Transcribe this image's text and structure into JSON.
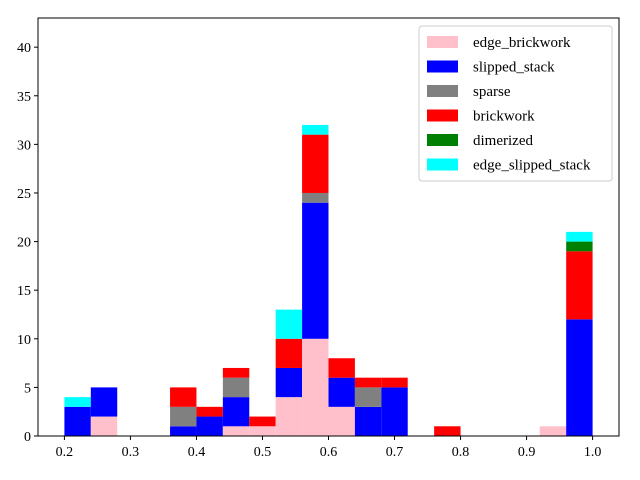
{
  "chart_data": {
    "type": "bar",
    "stacked": true,
    "title": "",
    "xlabel": "",
    "ylabel": "",
    "xlim": [
      0.16,
      1.04
    ],
    "ylim": [
      0,
      43
    ],
    "grid": false,
    "legend_position": "top-right",
    "xticks": [
      0.2,
      0.3,
      0.4,
      0.5,
      0.6,
      0.7,
      0.8,
      0.9,
      1.0
    ],
    "xtick_labels": [
      "0.2",
      "0.3",
      "0.4",
      "0.5",
      "0.6",
      "0.7",
      "0.8",
      "0.9",
      "1.0"
    ],
    "yticks": [
      0,
      5,
      10,
      15,
      20,
      25,
      30,
      35,
      40
    ],
    "ytick_labels": [
      "0",
      "5",
      "10",
      "15",
      "20",
      "25",
      "30",
      "35",
      "40"
    ],
    "bin_edges": [
      0.2,
      0.24,
      0.28,
      0.32,
      0.36,
      0.4,
      0.44,
      0.48,
      0.52,
      0.56,
      0.6,
      0.64,
      0.68,
      0.72,
      0.76,
      0.8,
      0.84,
      0.88,
      0.92,
      0.96,
      1.0
    ],
    "series": [
      {
        "name": "edge_brickwork",
        "color": "#ffc0cb",
        "values": [
          0,
          2,
          0,
          0,
          0,
          0,
          1,
          1,
          4,
          10,
          3,
          0,
          0,
          0,
          0,
          0,
          0,
          0,
          1,
          0
        ]
      },
      {
        "name": "slipped_stack",
        "color": "#0000ff",
        "values": [
          3,
          3,
          0,
          0,
          1,
          2,
          3,
          0,
          3,
          14,
          3,
          3,
          5,
          0,
          0,
          0,
          0,
          0,
          0,
          12
        ]
      },
      {
        "name": "sparse",
        "color": "#808080",
        "values": [
          0,
          0,
          0,
          0,
          2,
          0,
          2,
          0,
          0,
          1,
          0,
          2,
          0,
          0,
          0,
          0,
          0,
          0,
          0,
          0
        ]
      },
      {
        "name": "brickwork",
        "color": "#ff0000",
        "values": [
          0,
          0,
          0,
          0,
          2,
          1,
          1,
          1,
          3,
          6,
          2,
          1,
          1,
          0,
          1,
          0,
          0,
          0,
          0,
          7
        ]
      },
      {
        "name": "dimerized",
        "color": "#008000",
        "values": [
          0,
          0,
          0,
          0,
          0,
          0,
          0,
          0,
          0,
          0,
          0,
          0,
          0,
          0,
          0,
          0,
          0,
          0,
          0,
          1
        ]
      },
      {
        "name": "edge_slipped_stack",
        "color": "#00ffff",
        "values": [
          1,
          0,
          0,
          0,
          0,
          0,
          0,
          0,
          3,
          1,
          0,
          0,
          0,
          0,
          0,
          0,
          0,
          0,
          0,
          1
        ]
      }
    ]
  }
}
